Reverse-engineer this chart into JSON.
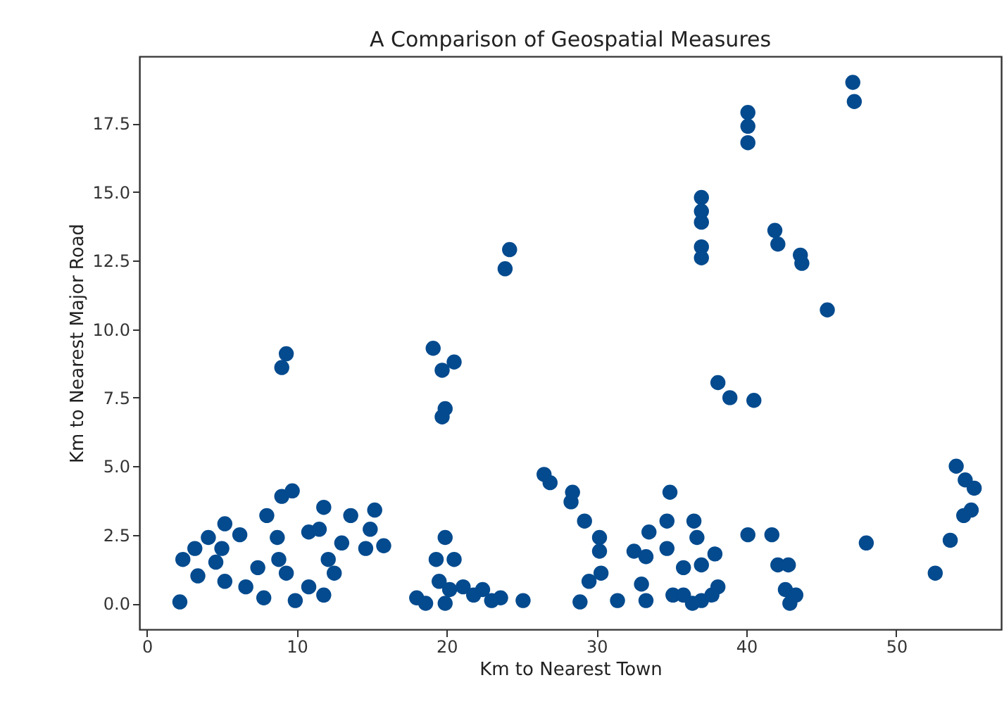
{
  "chart_data": {
    "type": "scatter",
    "title": "A Comparison of Geospatial Measures",
    "xlabel": "Km to Nearest Town",
    "ylabel": "Km to Nearest Major Road",
    "xlim": [
      -0.5,
      57
    ],
    "ylim": [
      -0.95,
      19.95
    ],
    "xticks": [
      0,
      10,
      20,
      30,
      40,
      50
    ],
    "yticks": [
      {
        "value": 0,
        "label": "0.0"
      },
      {
        "value": 2.5,
        "label": "2.5"
      },
      {
        "value": 5,
        "label": "5.0"
      },
      {
        "value": 7.5,
        "label": "7.5"
      },
      {
        "value": 10,
        "label": "10.0"
      },
      {
        "value": 12.5,
        "label": "12.5"
      },
      {
        "value": 15,
        "label": "15.0"
      },
      {
        "value": 17.5,
        "label": "17.5"
      }
    ],
    "grid": false,
    "marker": "circle",
    "series": [
      {
        "color": "#034a8e",
        "x": [
          2.2,
          2.4,
          3.4,
          3.2,
          4.1,
          4.6,
          5.2,
          6.2,
          5.2,
          6.6,
          5,
          7.4,
          8,
          9,
          9.7,
          8.7,
          8.8,
          7.8,
          9.3,
          9.9,
          10.8,
          11.8,
          10.8,
          11.8,
          11.5,
          12.1,
          13,
          12.5,
          13.6,
          15.2,
          14.6,
          15.8,
          14.9,
          19.9,
          19.3,
          20.5,
          18,
          18.6,
          19.5,
          20.2,
          19.9,
          21.1,
          21.8,
          22.4,
          23,
          23.6,
          25.1,
          19.9,
          19.7,
          26.5,
          26.9,
          28.3,
          9.3,
          9,
          19.1,
          20.5,
          19.7,
          24.2,
          23.9,
          28.4,
          29.2,
          30.2,
          30.2,
          30.3,
          29.5,
          28.9,
          31.4,
          32.5,
          33.3,
          33.5,
          33,
          33.3,
          34.9,
          34.7,
          34.7,
          35.1,
          35.8,
          35.8,
          36.5,
          36.7,
          37,
          37.9,
          38.1,
          37,
          36.4,
          37.7,
          38.1,
          38.9,
          40.5,
          40.1,
          41.7,
          42.1,
          42.8,
          42.6,
          43.3,
          42.9,
          48,
          52.6,
          53.6,
          54.5,
          55,
          54,
          54.6,
          55.2,
          47.1,
          47.2,
          40.1,
          40.1,
          40.1,
          37,
          37,
          37,
          37,
          37,
          41.9,
          42.1,
          43.6,
          43.7,
          45.4
        ],
        "values": [
          0.05,
          1.6,
          1,
          2,
          2.4,
          1.5,
          2.9,
          2.5,
          0.8,
          0.6,
          2,
          1.3,
          3.2,
          3.9,
          4.1,
          2.4,
          1.6,
          0.2,
          1.1,
          0.1,
          0.6,
          0.3,
          2.6,
          3.5,
          2.7,
          1.6,
          2.2,
          1.1,
          3.2,
          3.4,
          2,
          2.1,
          2.7,
          2.4,
          1.6,
          1.6,
          0.2,
          0,
          0.8,
          0.5,
          0,
          0.6,
          0.3,
          0.5,
          0.1,
          0.2,
          0.1,
          7.1,
          6.8,
          4.7,
          4.4,
          3.7,
          9.1,
          8.6,
          9.3,
          8.8,
          8.5,
          12.9,
          12.2,
          4.05,
          3,
          2.4,
          1.9,
          1.1,
          0.8,
          0.05,
          0.1,
          1.9,
          1.7,
          2.6,
          0.7,
          0.1,
          4.05,
          3,
          2,
          0.3,
          0.3,
          1.3,
          3,
          2.4,
          1.4,
          1.8,
          0.6,
          0.1,
          0,
          0.3,
          8.05,
          7.5,
          7.4,
          2.5,
          2.5,
          1.4,
          1.4,
          0.5,
          0.3,
          0,
          2.2,
          1.1,
          2.3,
          3.2,
          3.4,
          5,
          4.5,
          4.2,
          19,
          18.3,
          17.9,
          17.4,
          16.8,
          14.8,
          14.3,
          13.9,
          13,
          12.6,
          13.6,
          13.1,
          12.7,
          12.4,
          10.7
        ]
      }
    ]
  }
}
